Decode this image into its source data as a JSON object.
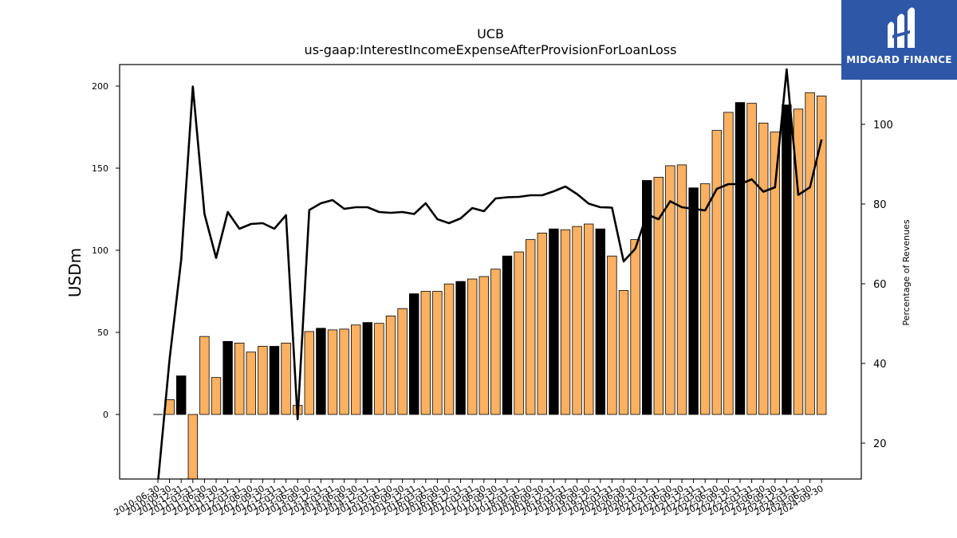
{
  "header": {
    "title": "UCB",
    "subtitle": "us-gaap:InterestIncomeExpenseAfterProvisionForLoanLoss"
  },
  "brand": {
    "name": "MIDGARD FINANCE",
    "logo_icon": "midgard-logo-icon",
    "background_color": "#2f57a8"
  },
  "colors": {
    "bar_orange": "#fbb161",
    "bar_black": "#000000",
    "line": "#000000"
  },
  "chart_data": {
    "type": "bar",
    "title": "UCB",
    "subtitle": "us-gaap:InterestIncomeExpenseAfterProvisionForLoanLoss",
    "ylabel": "USDm",
    "y2label": "Percentage of Revenues",
    "ylim": [
      -39,
      213
    ],
    "y2lim": [
      11,
      107
    ],
    "yticks": [
      0,
      50,
      100,
      150,
      200
    ],
    "y2ticks": [
      20,
      40,
      60,
      80,
      100
    ],
    "categories": [
      "2010-06-30",
      "2010-09-30",
      "2010-12-31",
      "2011-03-31",
      "2011-06-30",
      "2011-09-30",
      "2011-12-31",
      "2012-03-31",
      "2012-06-30",
      "2012-09-30",
      "2012-12-31",
      "2013-03-31",
      "2013-06-30",
      "2013-09-30",
      "2013-12-31",
      "2014-03-31",
      "2014-06-30",
      "2014-09-30",
      "2014-12-31",
      "2015-03-31",
      "2015-06-30",
      "2015-09-30",
      "2015-12-31",
      "2016-03-31",
      "2016-06-30",
      "2016-09-30",
      "2016-12-31",
      "2017-03-31",
      "2017-06-30",
      "2017-09-30",
      "2017-12-31",
      "2018-03-31",
      "2018-06-30",
      "2018-09-30",
      "2018-12-31",
      "2019-03-31",
      "2019-06-30",
      "2019-09-30",
      "2019-12-31",
      "2020-03-31",
      "2020-06-30",
      "2020-09-30",
      "2020-12-31",
      "2021-03-31",
      "2021-06-30",
      "2021-09-30",
      "2021-12-31",
      "2022-03-31",
      "2022-06-30",
      "2022-09-30",
      "2022-12-31",
      "2023-03-31",
      "2023-06-30",
      "2023-09-30",
      "2023-12-31",
      "2024-03-31",
      "2024-06-30",
      "2024-09-30"
    ],
    "series": [
      {
        "kind": "bar",
        "axis": "left",
        "values": [
          0,
          9,
          23.5,
          -40,
          47.5,
          22.5,
          44.5,
          43.5,
          38,
          41.5,
          41.5,
          43.5,
          5.5,
          50.5,
          52.5,
          51.5,
          52,
          54.5,
          56,
          55.5,
          60,
          64.5,
          73.5,
          75,
          75,
          79.5,
          81,
          82.5,
          84,
          88.5,
          96.5,
          99,
          106.5,
          110.5,
          113,
          112.5,
          114.5,
          116,
          113,
          96.5,
          75.5,
          106.5,
          142.5,
          144.5,
          151.5,
          152,
          138,
          140.5,
          173,
          184,
          190,
          189.5,
          177.5,
          172,
          188.5,
          186,
          196,
          194
        ],
        "colors": [
          "black",
          "orange",
          "black",
          "orange",
          "orange",
          "orange",
          "black",
          "orange",
          "orange",
          "orange",
          "black",
          "orange",
          "orange",
          "orange",
          "black",
          "orange",
          "orange",
          "orange",
          "black",
          "orange",
          "orange",
          "orange",
          "black",
          "orange",
          "orange",
          "orange",
          "black",
          "orange",
          "orange",
          "orange",
          "black",
          "orange",
          "orange",
          "orange",
          "black",
          "orange",
          "orange",
          "orange",
          "black",
          "orange",
          "orange",
          "orange",
          "black",
          "orange",
          "orange",
          "orange",
          "black",
          "orange",
          "orange",
          "orange",
          "black",
          "orange",
          "orange",
          "orange",
          "black",
          "orange",
          "orange",
          "orange"
        ]
      },
      {
        "kind": "line",
        "axis": "right",
        "values": [
          10,
          41,
          66,
          109.5,
          77.5,
          66.5,
          78,
          73.8,
          75,
          75.2,
          73.8,
          77.2,
          26,
          78.5,
          80.2,
          81,
          78.8,
          79.2,
          79.2,
          78,
          77.8,
          78,
          77.5,
          80.2,
          76.2,
          75.2,
          76.4,
          79,
          78.2,
          81.4,
          81.7,
          81.8,
          82.2,
          82.2,
          83.2,
          84.4,
          82.5,
          80.1,
          79.2,
          79.1,
          65.6,
          68.8,
          77.4,
          76.2,
          80.7,
          79.2,
          78.8,
          78.4,
          83.8,
          85,
          85,
          86.2,
          83.1,
          84.2,
          113.8,
          82.3,
          84.2,
          96.2
        ]
      }
    ]
  }
}
